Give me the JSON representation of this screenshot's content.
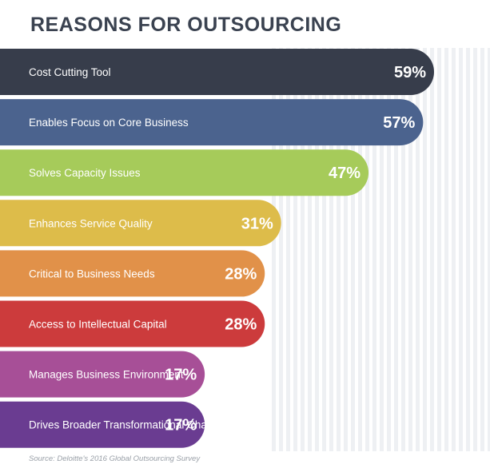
{
  "chart_data": {
    "type": "bar",
    "orientation": "horizontal",
    "title": "REASONS FOR OUTSOURCING",
    "categories": [
      "Cost Cutting Tool",
      "Enables Focus on Core Business",
      "Solves Capacity Issues",
      "Enhances Service Quality",
      "Critical to Business Needs",
      "Access to Intellectual Capital",
      "Manages Business Environment",
      "Drives Broader Transformational Change"
    ],
    "values": [
      59,
      57,
      47,
      31,
      28,
      28,
      17,
      17
    ],
    "value_labels": [
      "59%",
      "57%",
      "47%",
      "31%",
      "28%",
      "28%",
      "17%",
      "17%"
    ],
    "colors": [
      "#373d4b",
      "#4b638e",
      "#a6cb5a",
      "#ddbc4a",
      "#e19149",
      "#cc3b3c",
      "#a74f97",
      "#6a3c91"
    ],
    "xlim": [
      0,
      100
    ],
    "grid": false,
    "legend": "none",
    "source": "Source: Deloitte's 2016 Global Outsourcing Survey"
  }
}
